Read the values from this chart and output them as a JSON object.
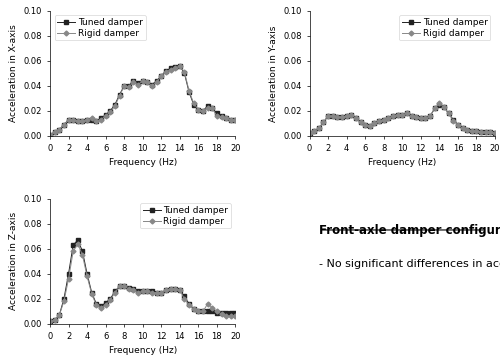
{
  "freq": [
    0,
    0.5,
    1,
    1.5,
    2,
    2.5,
    3,
    3.5,
    4,
    4.5,
    5,
    5.5,
    6,
    6.5,
    7,
    7.5,
    8,
    8.5,
    9,
    9.5,
    10,
    10.5,
    11,
    11.5,
    12,
    12.5,
    13,
    13.5,
    14,
    14.5,
    15,
    15.5,
    16,
    16.5,
    17,
    17.5,
    18,
    18.5,
    19,
    19.5,
    20
  ],
  "x_tuned": [
    0.001,
    0.003,
    0.005,
    0.009,
    0.013,
    0.013,
    0.012,
    0.012,
    0.013,
    0.013,
    0.012,
    0.014,
    0.017,
    0.02,
    0.025,
    0.033,
    0.04,
    0.04,
    0.044,
    0.042,
    0.044,
    0.043,
    0.041,
    0.044,
    0.048,
    0.052,
    0.054,
    0.055,
    0.056,
    0.05,
    0.035,
    0.025,
    0.021,
    0.02,
    0.024,
    0.022,
    0.018,
    0.016,
    0.014,
    0.013,
    0.013
  ],
  "x_rigid": [
    0.001,
    0.003,
    0.005,
    0.009,
    0.013,
    0.013,
    0.012,
    0.012,
    0.013,
    0.014,
    0.012,
    0.013,
    0.016,
    0.019,
    0.024,
    0.032,
    0.04,
    0.039,
    0.043,
    0.041,
    0.044,
    0.043,
    0.04,
    0.043,
    0.048,
    0.051,
    0.053,
    0.054,
    0.056,
    0.051,
    0.036,
    0.026,
    0.021,
    0.02,
    0.022,
    0.022,
    0.016,
    0.015,
    0.014,
    0.013,
    0.013
  ],
  "y_tuned": [
    0.002,
    0.004,
    0.006,
    0.011,
    0.016,
    0.016,
    0.015,
    0.015,
    0.016,
    0.017,
    0.014,
    0.011,
    0.009,
    0.008,
    0.01,
    0.012,
    0.013,
    0.014,
    0.016,
    0.017,
    0.017,
    0.018,
    0.016,
    0.015,
    0.014,
    0.014,
    0.016,
    0.022,
    0.025,
    0.023,
    0.018,
    0.013,
    0.009,
    0.006,
    0.005,
    0.004,
    0.004,
    0.003,
    0.003,
    0.003,
    0.002
  ],
  "y_rigid": [
    0.002,
    0.004,
    0.006,
    0.011,
    0.016,
    0.016,
    0.015,
    0.015,
    0.016,
    0.017,
    0.014,
    0.011,
    0.009,
    0.008,
    0.01,
    0.012,
    0.013,
    0.014,
    0.016,
    0.017,
    0.017,
    0.018,
    0.016,
    0.015,
    0.014,
    0.014,
    0.016,
    0.022,
    0.026,
    0.023,
    0.018,
    0.012,
    0.009,
    0.006,
    0.005,
    0.004,
    0.004,
    0.003,
    0.003,
    0.003,
    0.002
  ],
  "z_tuned": [
    0.002,
    0.003,
    0.007,
    0.02,
    0.04,
    0.063,
    0.067,
    0.058,
    0.04,
    0.025,
    0.016,
    0.014,
    0.017,
    0.02,
    0.026,
    0.03,
    0.03,
    0.029,
    0.028,
    0.026,
    0.026,
    0.026,
    0.026,
    0.025,
    0.025,
    0.027,
    0.028,
    0.028,
    0.027,
    0.022,
    0.016,
    0.012,
    0.01,
    0.01,
    0.01,
    0.01,
    0.009,
    0.009,
    0.009,
    0.009,
    0.009
  ],
  "z_rigid": [
    0.002,
    0.003,
    0.007,
    0.018,
    0.036,
    0.058,
    0.064,
    0.055,
    0.038,
    0.024,
    0.015,
    0.013,
    0.015,
    0.019,
    0.025,
    0.03,
    0.03,
    0.028,
    0.027,
    0.025,
    0.026,
    0.026,
    0.025,
    0.025,
    0.025,
    0.027,
    0.028,
    0.028,
    0.027,
    0.02,
    0.015,
    0.012,
    0.01,
    0.01,
    0.016,
    0.013,
    0.01,
    0.008,
    0.006,
    0.006,
    0.006
  ],
  "xlabel": "Frequency (Hz)",
  "ylabel_x": "Acceleration in X-axis",
  "ylabel_y": "Acceleration in Y-axis",
  "ylabel_z": "Acceleration in Z-axis",
  "ylim": [
    0.0,
    0.1
  ],
  "xlim": [
    0,
    20
  ],
  "yticks": [
    0.0,
    0.02,
    0.04,
    0.06,
    0.08,
    0.1
  ],
  "xticks": [
    0,
    2,
    4,
    6,
    8,
    10,
    12,
    14,
    16,
    18,
    20
  ],
  "legend_tuned": "Tuned damper",
  "legend_rigid": "Rigid damper",
  "text_title": "Front-axle damper configuration:",
  "text_body": "- No significant differences in acceleration",
  "line_color_tuned": "#222222",
  "line_color_rigid": "#888888",
  "marker_tuned": "s",
  "marker_rigid": "D",
  "markersize": 2.5,
  "linewidth": 0.7,
  "fontsize_label": 6.5,
  "fontsize_tick": 6,
  "fontsize_legend": 6.5,
  "fontsize_text_title": 8.5,
  "fontsize_text_body": 8
}
